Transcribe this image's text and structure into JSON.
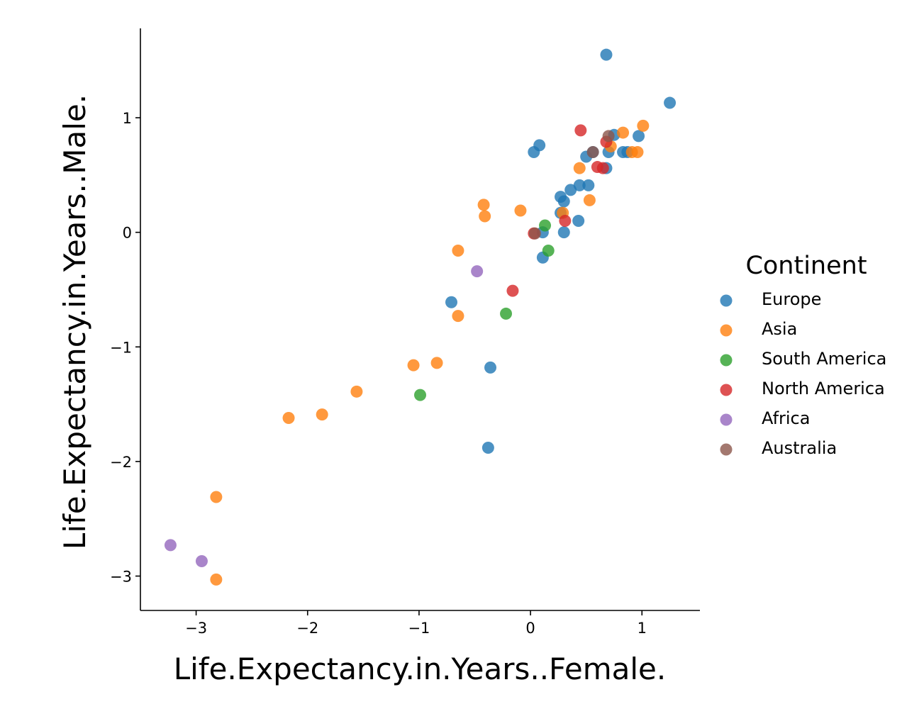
{
  "chart_data": {
    "type": "scatter",
    "title": "",
    "xlabel": "Life.Expectancy.in.Years..Female.",
    "ylabel": "Life.Expectancy.in.Years..Male.",
    "xlim": [
      -3.5,
      1.52
    ],
    "ylim": [
      -3.3,
      1.78
    ],
    "xticks": [
      -3,
      -2,
      -1,
      0,
      1
    ],
    "yticks": [
      -3,
      -2,
      -1,
      0,
      1
    ],
    "xtick_labels": [
      "−3",
      "−2",
      "−1",
      "0",
      "1"
    ],
    "ytick_labels": [
      "−3",
      "−2",
      "−1",
      "0",
      "1"
    ],
    "grid": false,
    "legend": {
      "title": "Continent",
      "placement": "right"
    },
    "series": [
      {
        "name": "Europe",
        "color": "#1f77b4",
        "points": [
          [
            0.68,
            1.55
          ],
          [
            1.25,
            1.13
          ],
          [
            0.97,
            0.84
          ],
          [
            0.83,
            0.7
          ],
          [
            0.87,
            0.7
          ],
          [
            0.08,
            0.76
          ],
          [
            0.03,
            0.7
          ],
          [
            0.5,
            0.66
          ],
          [
            0.56,
            0.7
          ],
          [
            0.7,
            0.7
          ],
          [
            0.75,
            0.85
          ],
          [
            0.68,
            0.56
          ],
          [
            0.44,
            0.41
          ],
          [
            0.52,
            0.41
          ],
          [
            0.36,
            0.37
          ],
          [
            0.27,
            0.31
          ],
          [
            0.3,
            0.27
          ],
          [
            0.27,
            0.17
          ],
          [
            0.43,
            0.1
          ],
          [
            0.11,
            0.0
          ],
          [
            0.3,
            0.0
          ],
          [
            0.11,
            -0.22
          ],
          [
            -0.71,
            -0.61
          ],
          [
            -0.36,
            -1.18
          ],
          [
            -0.38,
            -1.88
          ]
        ]
      },
      {
        "name": "Asia",
        "color": "#ff7f0e",
        "points": [
          [
            1.01,
            0.93
          ],
          [
            0.83,
            0.87
          ],
          [
            0.72,
            0.75
          ],
          [
            0.91,
            0.7
          ],
          [
            0.96,
            0.7
          ],
          [
            0.44,
            0.56
          ],
          [
            0.53,
            0.28
          ],
          [
            -0.42,
            0.24
          ],
          [
            -0.41,
            0.14
          ],
          [
            -0.09,
            0.19
          ],
          [
            0.29,
            0.17
          ],
          [
            -0.65,
            -0.16
          ],
          [
            -0.65,
            -0.73
          ],
          [
            -1.05,
            -1.16
          ],
          [
            -0.84,
            -1.14
          ],
          [
            -1.56,
            -1.39
          ],
          [
            -1.87,
            -1.59
          ],
          [
            -2.17,
            -1.62
          ],
          [
            -2.82,
            -2.31
          ],
          [
            -2.82,
            -3.03
          ]
        ]
      },
      {
        "name": "South America",
        "color": "#2ca02c",
        "points": [
          [
            0.13,
            0.06
          ],
          [
            0.16,
            -0.16
          ],
          [
            -0.22,
            -0.71
          ],
          [
            -0.99,
            -1.42
          ]
        ]
      },
      {
        "name": "North America",
        "color": "#d62728",
        "points": [
          [
            0.45,
            0.89
          ],
          [
            0.68,
            0.79
          ],
          [
            0.6,
            0.57
          ],
          [
            0.65,
            0.56
          ],
          [
            0.31,
            0.1
          ],
          [
            0.03,
            -0.01
          ],
          [
            -0.16,
            -0.51
          ]
        ]
      },
      {
        "name": "Africa",
        "color": "#9467bd",
        "points": [
          [
            -0.48,
            -0.34
          ],
          [
            -3.23,
            -2.73
          ],
          [
            -2.95,
            -2.87
          ]
        ]
      },
      {
        "name": "Australia",
        "color": "#8c564b",
        "points": [
          [
            0.7,
            0.84
          ],
          [
            0.56,
            0.7
          ],
          [
            0.04,
            -0.01
          ]
        ]
      }
    ]
  }
}
